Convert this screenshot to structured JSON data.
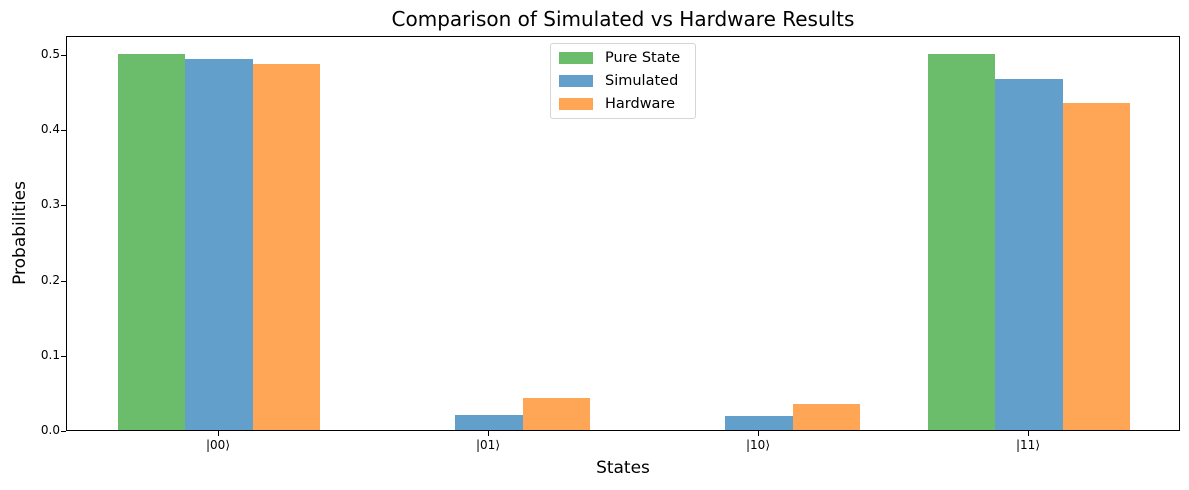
{
  "chart_data": {
    "type": "bar",
    "title": "Comparison of Simulated vs Hardware Results",
    "xlabel": "States",
    "ylabel": "Probabilities",
    "categories": [
      "|00⟩",
      "|01⟩",
      "|10⟩",
      "|11⟩"
    ],
    "series": [
      {
        "name": "Pure State",
        "color": "#6bbd6b",
        "values": [
          0.5,
          0.0,
          0.0,
          0.5
        ]
      },
      {
        "name": "Simulated",
        "color": "#629fca",
        "values": [
          0.493,
          0.02,
          0.019,
          0.467
        ]
      },
      {
        "name": "Hardware",
        "color": "#ffa556",
        "values": [
          0.487,
          0.043,
          0.034,
          0.435
        ]
      }
    ],
    "ylim": [
      0,
      0.525
    ],
    "yticks": [
      "0.0",
      "0.1",
      "0.2",
      "0.3",
      "0.4",
      "0.5"
    ],
    "grid": false,
    "legend_position": "upper center"
  }
}
